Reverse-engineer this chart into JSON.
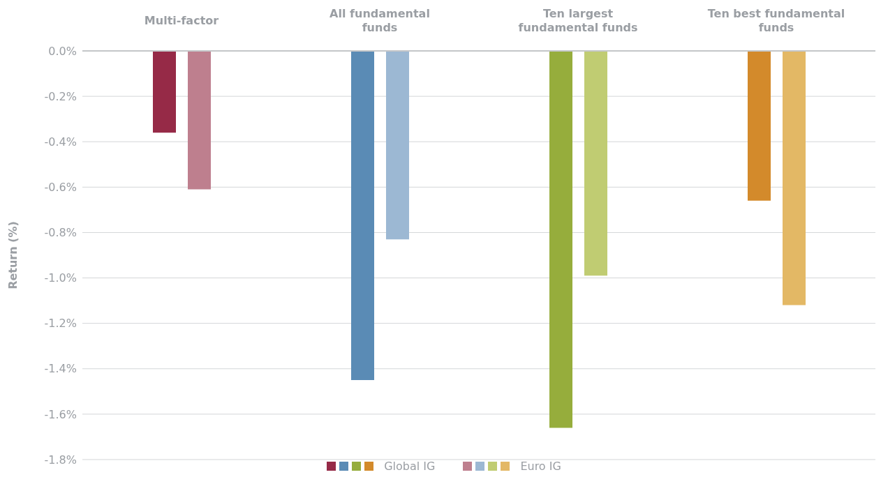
{
  "chart_data": {
    "type": "bar",
    "ylabel": "Return (%)",
    "categories": [
      "Multi-factor",
      "All fundamental funds",
      "Ten largest fundamental funds",
      "Ten best fundamental funds"
    ],
    "series": [
      {
        "name": "Global IG",
        "colors": [
          "#962a47",
          "#5a8bb5",
          "#96ad3c",
          "#d38a2b"
        ],
        "values": [
          -0.36,
          -1.45,
          -1.66,
          -0.66
        ]
      },
      {
        "name": "Euro IG",
        "colors": [
          "#be7f8e",
          "#9cb8d3",
          "#c0cc72",
          "#e3b865"
        ],
        "values": [
          -0.61,
          -0.83,
          -0.99,
          -1.12
        ]
      }
    ],
    "ylim": [
      -1.8,
      0
    ],
    "yticks": [
      {
        "value": 0,
        "label": "0.0%"
      },
      {
        "value": -0.2,
        "label": "-0.2%"
      },
      {
        "value": -0.4,
        "label": "-0.4%"
      },
      {
        "value": -0.6,
        "label": "-0.6%"
      },
      {
        "value": -0.8,
        "label": "-0.8%"
      },
      {
        "value": -1.0,
        "label": "-1.0%"
      },
      {
        "value": -1.2,
        "label": "-1.2%"
      },
      {
        "value": -1.4,
        "label": "-1.4%"
      },
      {
        "value": -1.6,
        "label": "-1.6%"
      },
      {
        "value": -1.8,
        "label": "-1.8%"
      }
    ],
    "grid": "y",
    "legend": "bottom"
  }
}
